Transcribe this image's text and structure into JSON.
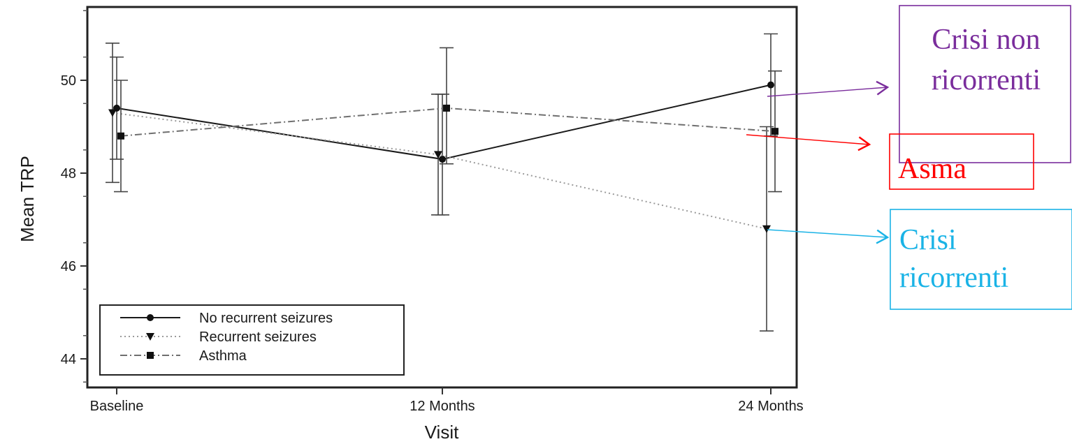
{
  "chart_data": {
    "type": "line",
    "xlabel": "Visit",
    "ylabel": "Mean TRP",
    "categories": [
      "Baseline",
      "12 Months",
      "24 Months"
    ],
    "ylim": [
      43.3,
      51.7
    ],
    "yticks": [
      44,
      46,
      48,
      50
    ],
    "grid": false,
    "legend_position": "bottom-left",
    "series": [
      {
        "name": "No recurrent seizures",
        "marker": "circle",
        "line": "solid",
        "values": [
          49.4,
          48.3,
          49.9
        ],
        "ci_low": [
          48.3,
          47.1,
          48.8
        ],
        "ci_high": [
          50.5,
          49.7,
          51.0
        ]
      },
      {
        "name": "Recurrent seizures",
        "marker": "triangle-down",
        "line": "dotted",
        "values": [
          49.3,
          48.4,
          46.8
        ],
        "ci_low": [
          47.8,
          47.1,
          44.6
        ],
        "ci_high": [
          50.8,
          49.7,
          49.0
        ]
      },
      {
        "name": "Asthma",
        "marker": "square",
        "line": "dash-dot",
        "values": [
          48.8,
          49.4,
          48.9
        ],
        "ci_low": [
          47.6,
          48.2,
          47.6
        ],
        "ci_high": [
          50.0,
          50.7,
          50.2
        ]
      }
    ],
    "annotations": [
      {
        "text": "Crisi non ricorrenti",
        "lines": [
          "Crisi non",
          "ricorrenti"
        ],
        "color": "#7a2d9c",
        "series": "No recurrent seizures"
      },
      {
        "text": "Asma",
        "lines": [
          "Asma"
        ],
        "color": "#ff0000",
        "series": "Asthma"
      },
      {
        "text": "Crisi ricorrenti",
        "lines": [
          "Crisi",
          "ricorrenti"
        ],
        "color": "#1ab3e6",
        "series": "Recurrent seizures"
      }
    ]
  }
}
